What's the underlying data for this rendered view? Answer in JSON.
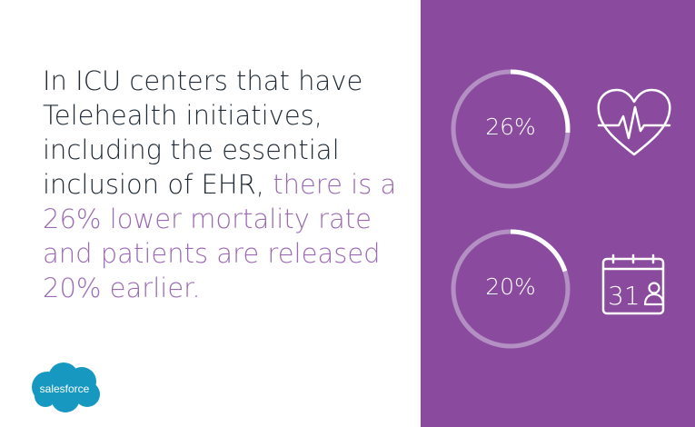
{
  "headline": {
    "part1": "In ICU centers that have Telehealth initiatives, including the essential inclusion of EHR, ",
    "part2": "there is a 26% lower mortality rate and patients are released 20% earlier."
  },
  "logo": {
    "text": "salesforce"
  },
  "stats": [
    {
      "label": "26%",
      "value": 26
    },
    {
      "label": "20%",
      "value": 20
    }
  ],
  "calendar": {
    "day": "31"
  },
  "colors": {
    "panel": "#8a4b9e",
    "accent": "#9b6bb5",
    "ring_track": "#b48fc3",
    "ring_fill": "#ffffff",
    "logo": "#1798c1"
  }
}
